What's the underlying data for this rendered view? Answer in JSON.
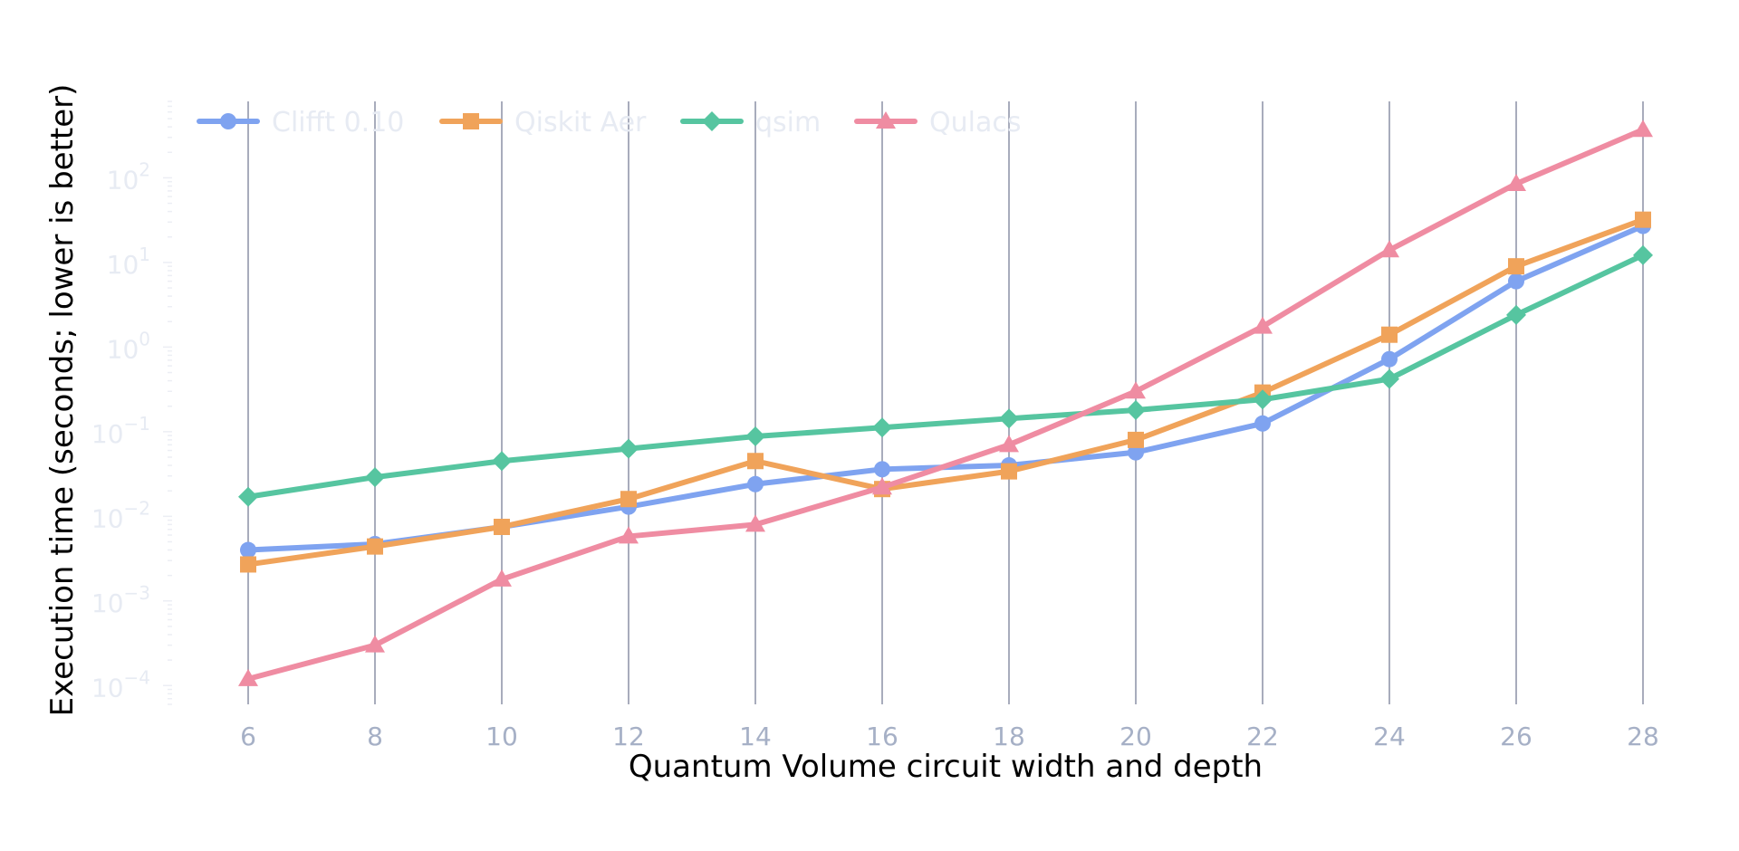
{
  "chart_data": {
    "type": "line",
    "title": "",
    "xlabel": "Quantum Volume circuit width and depth",
    "ylabel": "Execution time (seconds; lower is better)",
    "x": [
      6,
      8,
      10,
      12,
      14,
      16,
      18,
      20,
      22,
      24,
      26,
      28
    ],
    "xlim": [
      4.8,
      29.2
    ],
    "x_tick_labels": [
      "6",
      "8",
      "10",
      "12",
      "14",
      "16",
      "18",
      "20",
      "22",
      "24",
      "26",
      "28"
    ],
    "yscale": "log",
    "ylim": [
      6e-05,
      800
    ],
    "y_tick_values": [
      0.0001,
      0.001,
      0.01,
      0.1,
      1,
      10,
      100
    ],
    "y_tick_labels": [
      {
        "base": "10",
        "exp": "−4"
      },
      {
        "base": "10",
        "exp": "−3"
      },
      {
        "base": "10",
        "exp": "−2"
      },
      {
        "base": "10",
        "exp": "−1"
      },
      {
        "base": "10",
        "exp": "0"
      },
      {
        "base": "10",
        "exp": "1"
      },
      {
        "base": "10",
        "exp": "2"
      }
    ],
    "grid": {
      "x": true,
      "y": false
    },
    "legend_position": "top-left",
    "series": [
      {
        "name": "Clifft 0.10",
        "color": "#7fa3f0",
        "marker": "circle",
        "values": [
          0.004,
          0.0047,
          0.0075,
          0.013,
          0.024,
          0.036,
          0.04,
          0.057,
          0.125,
          0.72,
          6.0,
          27
        ]
      },
      {
        "name": "Qiskit Aer",
        "color": "#f0a35a",
        "marker": "square",
        "values": [
          0.0027,
          0.0044,
          0.0075,
          0.016,
          0.045,
          0.021,
          0.034,
          0.08,
          0.29,
          1.4,
          9.0,
          32
        ]
      },
      {
        "name": "qsim",
        "color": "#56c5a0",
        "marker": "diamond",
        "values": [
          0.017,
          0.029,
          0.045,
          0.063,
          0.088,
          0.112,
          0.143,
          0.18,
          0.24,
          0.42,
          2.4,
          12.2
        ]
      },
      {
        "name": "Qulacs",
        "color": "#ef8ca2",
        "marker": "triangle",
        "values": [
          0.00012,
          0.0003,
          0.0018,
          0.0058,
          0.008,
          0.022,
          0.07,
          0.3,
          1.75,
          14,
          85,
          370
        ]
      }
    ],
    "colors": {
      "grid": "#a8acbc",
      "tick_label": "#a6b0c6",
      "axis_title": "#e7ebf3",
      "legend_text": "#e7ebf3"
    }
  }
}
